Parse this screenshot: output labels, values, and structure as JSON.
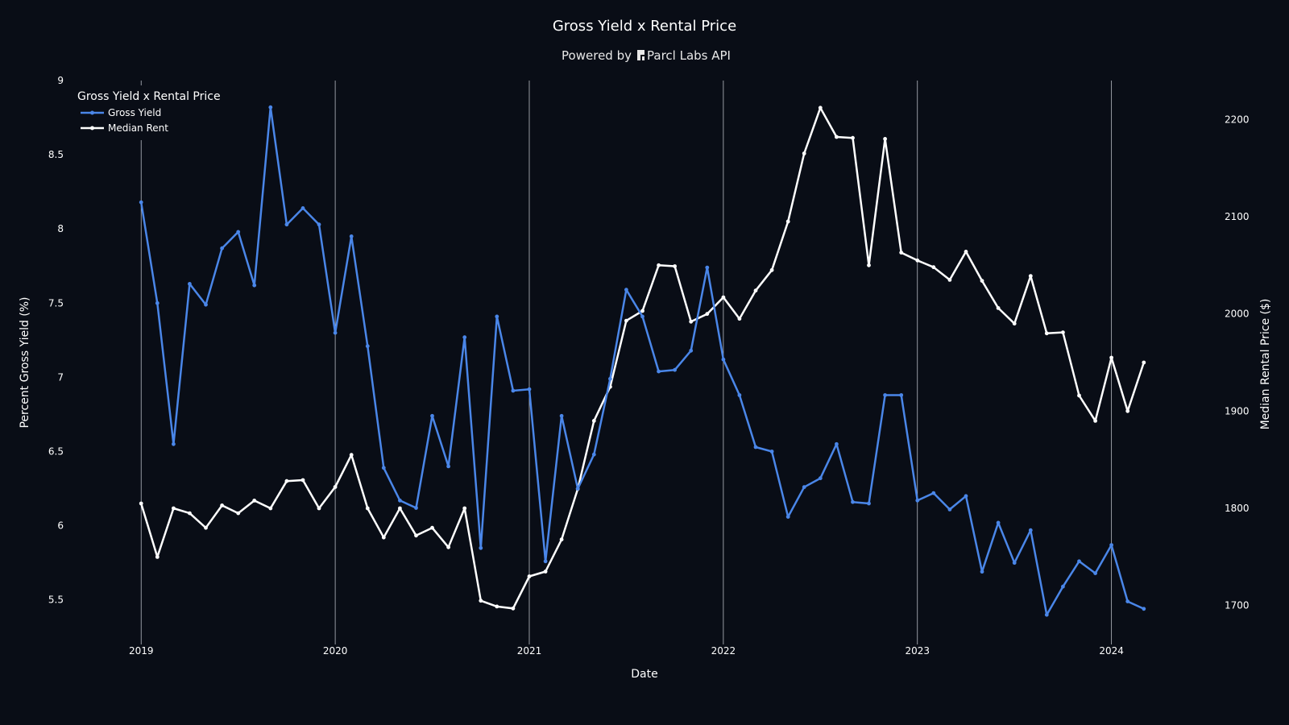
{
  "chart_data": {
    "type": "line",
    "title": "Gross Yield x Rental Price",
    "subtitle_prefix": "Powered by",
    "subtitle_brand": "Parcl Labs API",
    "xlabel": "Date",
    "ylabel": "Percent Gross Yield (%)",
    "y2label": "Median Rental Price ($)",
    "x_ticks": [
      "2019",
      "2020",
      "2021",
      "2022",
      "2023",
      "2024"
    ],
    "y_ticks": [
      "5.5",
      "6",
      "6.5",
      "7",
      "7.5",
      "8",
      "8.5",
      "9"
    ],
    "y2_ticks": [
      "1700",
      "1800",
      "1900",
      "2000",
      "2100",
      "2200"
    ],
    "ylim": [
      5.2,
      9.0
    ],
    "y2lim": [
      1660,
      2240
    ],
    "xlim": [
      "2018-10",
      "2024-06"
    ],
    "grid": "vertical lines at yearly ticks",
    "legend": {
      "title": "Gross Yield x Rental Price",
      "placement": "top-left"
    },
    "x": [
      "2019-01",
      "2019-02",
      "2019-03",
      "2019-04",
      "2019-05",
      "2019-06",
      "2019-07",
      "2019-08",
      "2019-09",
      "2019-10",
      "2019-11",
      "2019-12",
      "2020-01",
      "2020-02",
      "2020-03",
      "2020-04",
      "2020-05",
      "2020-06",
      "2020-07",
      "2020-08",
      "2020-09",
      "2020-10",
      "2020-11",
      "2020-12",
      "2021-01",
      "2021-02",
      "2021-03",
      "2021-04",
      "2021-05",
      "2021-06",
      "2021-07",
      "2021-08",
      "2021-09",
      "2021-10",
      "2021-11",
      "2021-12",
      "2022-01",
      "2022-02",
      "2022-03",
      "2022-04",
      "2022-05",
      "2022-06",
      "2022-07",
      "2022-08",
      "2022-09",
      "2022-10",
      "2022-11",
      "2022-12",
      "2023-01",
      "2023-02",
      "2023-03",
      "2023-04",
      "2023-05",
      "2023-06",
      "2023-07",
      "2023-08",
      "2023-09",
      "2023-10",
      "2023-11",
      "2023-12",
      "2024-01",
      "2024-02",
      "2024-03"
    ],
    "series": [
      {
        "name": "Gross Yield",
        "axis": "left",
        "color": "#4a86e8",
        "values": [
          8.18,
          7.5,
          6.55,
          7.63,
          7.49,
          7.87,
          7.98,
          7.62,
          8.82,
          8.03,
          8.14,
          8.03,
          7.3,
          7.95,
          7.21,
          6.39,
          6.17,
          6.12,
          6.74,
          6.4,
          7.27,
          5.85,
          7.41,
          6.91,
          6.92,
          5.76,
          6.74,
          6.25,
          6.48,
          6.99,
          7.59,
          7.41,
          7.04,
          7.05,
          7.18,
          7.74,
          7.12,
          6.88,
          6.53,
          6.5,
          6.06,
          6.26,
          6.32,
          6.55,
          6.16,
          6.15,
          6.88,
          6.88,
          6.17,
          6.22,
          6.11,
          6.2,
          5.69,
          6.02,
          5.75,
          5.97,
          5.4,
          5.59,
          5.76,
          5.68,
          5.87,
          5.49,
          5.44
        ]
      },
      {
        "name": "Median Rent",
        "axis": "right",
        "color": "#ffffff",
        "values": [
          1805,
          1750,
          1800,
          1795,
          1780,
          1803,
          1795,
          1808,
          1800,
          1828,
          1829,
          1800,
          1822,
          1855,
          1800,
          1770,
          1800,
          1772,
          1780,
          1760,
          1800,
          1705,
          1699,
          1697,
          1730,
          1735,
          1768,
          1820,
          1890,
          1925,
          1993,
          2003,
          2050,
          2049,
          1992,
          2000,
          2017,
          1995,
          2024,
          2045,
          2095,
          2165,
          2212,
          2182,
          2181,
          2050,
          2180,
          2063,
          2055,
          2048,
          2035,
          2064,
          2034,
          2006,
          1990,
          2039,
          1980,
          1981,
          1916,
          1890,
          1955,
          1900,
          1950
        ]
      }
    ]
  }
}
